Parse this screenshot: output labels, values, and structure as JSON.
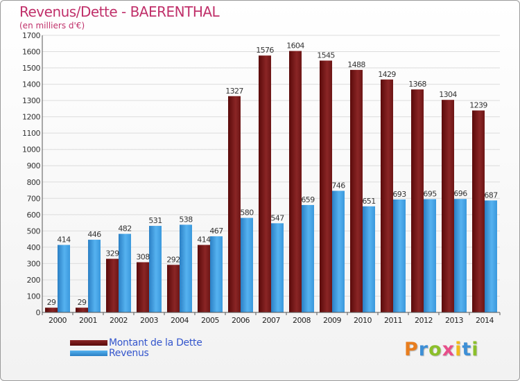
{
  "header": {
    "title": "Revenus/Dette - BAERENTHAL",
    "subtitle": "(en milliers d'€)"
  },
  "chart_data": {
    "type": "bar",
    "categories": [
      "2000",
      "2001",
      "2002",
      "2003",
      "2004",
      "2005",
      "2006",
      "2007",
      "2008",
      "2009",
      "2010",
      "2011",
      "2012",
      "2013",
      "2014"
    ],
    "series": [
      {
        "name": "Montant de la Dette",
        "color": "#7a1a1a",
        "values": [
          29,
          29,
          329,
          308,
          292,
          414,
          1327,
          1576,
          1604,
          1545,
          1488,
          1429,
          1368,
          1304,
          1239
        ]
      },
      {
        "name": "Revenus",
        "color": "#3a9ee0",
        "values": [
          414,
          446,
          482,
          531,
          538,
          467,
          580,
          547,
          659,
          746,
          651,
          693,
          695,
          696,
          687
        ]
      }
    ],
    "ylim": [
      0,
      1700
    ],
    "yticks": [
      0,
      100,
      200,
      300,
      400,
      500,
      600,
      700,
      800,
      900,
      1000,
      1100,
      1200,
      1300,
      1400,
      1500,
      1600,
      1700
    ],
    "grid": true,
    "legend_position": "bottom-left"
  },
  "legend": {
    "items": [
      {
        "label": "Montant de la Dette",
        "color": "#7a1a1a"
      },
      {
        "label": "Revenus",
        "color": "#3a9ee0"
      }
    ]
  },
  "logo": {
    "text": "Proxiti",
    "letters": [
      {
        "ch": "P",
        "color": "#e87d1e"
      },
      {
        "ch": "r",
        "color": "#3d8fd6"
      },
      {
        "ch": "o",
        "color": "#8bbf2a"
      },
      {
        "ch": "x",
        "color": "#e84e8a"
      },
      {
        "ch": "i",
        "color": "#f2b91a"
      },
      {
        "ch": "t",
        "color": "#3d8fd6"
      },
      {
        "ch": "i",
        "color": "#8bbf2a"
      }
    ]
  }
}
